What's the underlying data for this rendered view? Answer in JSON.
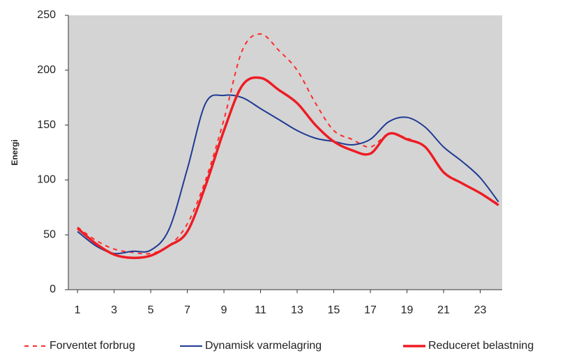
{
  "chart_data": {
    "type": "line",
    "y_label": "Energi",
    "x": [
      1,
      2,
      3,
      4,
      5,
      6,
      7,
      8,
      9,
      10,
      11,
      12,
      13,
      14,
      15,
      16,
      17,
      18,
      19,
      20,
      21,
      22,
      23,
      24
    ],
    "xlim": [
      0.5,
      24.2
    ],
    "xticks": [
      1,
      3,
      5,
      7,
      9,
      11,
      13,
      15,
      17,
      19,
      21,
      23
    ],
    "ylim": [
      0,
      250
    ],
    "yticks": [
      0,
      50,
      100,
      150,
      200,
      250
    ],
    "plot_background": "#d4d4d4",
    "legend": "bottom",
    "series": [
      {
        "name": "Forventet forbrug",
        "color": "#ff2a2a",
        "dashed": true,
        "values": [
          57,
          45,
          37,
          34,
          33,
          40,
          60,
          100,
          155,
          218,
          233,
          218,
          200,
          170,
          145,
          137,
          130,
          142,
          138,
          130,
          107,
          97,
          88,
          78
        ]
      },
      {
        "name": "Dynamisk varmelagring",
        "color": "#1f3a93",
        "dashed": false,
        "values": [
          53,
          40,
          33,
          35,
          36,
          55,
          110,
          170,
          177,
          175,
          165,
          155,
          145,
          138,
          135,
          132,
          137,
          153,
          157,
          148,
          130,
          117,
          102,
          80
        ]
      },
      {
        "name": "Reduceret belastning",
        "color": "#ee1c24",
        "dashed": false,
        "thick": true,
        "values": [
          56,
          42,
          32,
          29,
          31,
          40,
          53,
          95,
          145,
          186,
          193,
          182,
          170,
          150,
          135,
          127,
          124,
          142,
          137,
          130,
          107,
          97,
          88,
          77
        ]
      }
    ]
  }
}
